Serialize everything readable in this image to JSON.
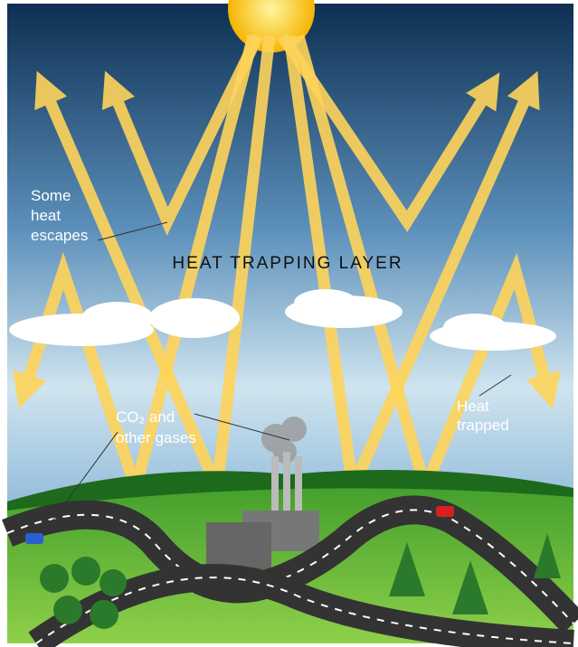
{
  "labels": {
    "escapes": {
      "lines": [
        "Some",
        "heat",
        "escapes"
      ]
    },
    "layer": {
      "text": "HEAT TRAPPING LAYER"
    },
    "gases": {
      "lines": [
        "CO₂ and",
        "other gases"
      ]
    },
    "trapped": {
      "lines": [
        "Heat",
        "trapped"
      ]
    }
  }
}
